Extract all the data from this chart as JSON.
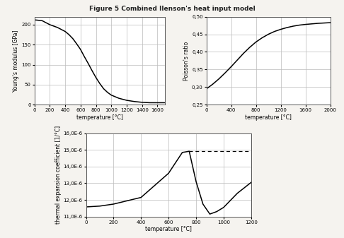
{
  "title": "Figure 5 Combined Ilenson's heat input model",
  "plot1": {
    "xlabel": "temperature [°C]",
    "ylabel": "Young's modulus [GPa]",
    "xlim": [
      0,
      1700
    ],
    "ylim": [
      0,
      220
    ],
    "xticks": [
      0,
      200,
      400,
      600,
      800,
      1000,
      1200,
      1400,
      1600
    ],
    "yticks": [
      0,
      50,
      100,
      150,
      200
    ],
    "x": [
      0,
      100,
      200,
      300,
      400,
      450,
      500,
      550,
      600,
      650,
      700,
      750,
      800,
      850,
      900,
      950,
      1000,
      1100,
      1200,
      1300,
      1400,
      1500,
      1600,
      1700
    ],
    "y": [
      212,
      210,
      200,
      193,
      183,
      175,
      165,
      152,
      138,
      120,
      103,
      85,
      68,
      53,
      40,
      31,
      24,
      16,
      11,
      8,
      6,
      5,
      5,
      5
    ]
  },
  "plot2": {
    "xlabel": "temperature [°C]",
    "ylabel": "Poisson's ratio",
    "xlim": [
      0,
      2000
    ],
    "ylim": [
      0.25,
      0.5
    ],
    "xticks": [
      0,
      400,
      800,
      1200,
      1600,
      2000
    ],
    "yticks": [
      0.25,
      0.3,
      0.35,
      0.4,
      0.45,
      0.5
    ],
    "ytick_labels": [
      "0,25",
      "0,30",
      "0,35",
      "0,40",
      "0,45",
      "0,50"
    ],
    "x": [
      0,
      100,
      200,
      300,
      400,
      500,
      600,
      700,
      800,
      900,
      1000,
      1100,
      1200,
      1300,
      1400,
      1500,
      1600,
      1800,
      2000
    ],
    "y": [
      0.295,
      0.308,
      0.323,
      0.34,
      0.358,
      0.377,
      0.396,
      0.413,
      0.428,
      0.44,
      0.45,
      0.458,
      0.464,
      0.469,
      0.473,
      0.476,
      0.478,
      0.481,
      0.483
    ]
  },
  "plot3": {
    "xlabel": "temperature [°C]",
    "ylabel": "thermal expansion coefficient [1/°C]",
    "xlim": [
      0,
      1200
    ],
    "ylim": [
      1.1e-05,
      1.6e-05
    ],
    "xticks": [
      0,
      200,
      400,
      600,
      800,
      1000,
      1200
    ],
    "yticks": [
      1.1e-05,
      1.2e-05,
      1.3e-05,
      1.4e-05,
      1.5e-05,
      1.6e-05
    ],
    "ytick_labels": [
      "11,0E-6",
      "12,0E-6",
      "13,0E-6",
      "14,0E-6",
      "15,0E-6",
      "16,0E-6"
    ],
    "x": [
      0,
      100,
      200,
      400,
      600,
      700,
      750,
      800,
      850,
      900,
      950,
      1000,
      1100,
      1200
    ],
    "y": [
      1.158e-05,
      1.163e-05,
      1.175e-05,
      1.215e-05,
      1.36e-05,
      1.485e-05,
      1.492e-05,
      1.31e-05,
      1.175e-05,
      1.115e-05,
      1.13e-05,
      1.155e-05,
      1.24e-05,
      1.305e-05
    ],
    "dashed_x": [
      750,
      800,
      900,
      1000,
      1100,
      1200
    ],
    "dashed_y": [
      1.492e-05,
      1.492e-05,
      1.492e-05,
      1.492e-05,
      1.492e-05,
      1.492e-05
    ]
  },
  "bg_color": "#f5f3ef",
  "plot_bg": "#ffffff",
  "grid_color": "#bbbbbb",
  "line_color": "#000000",
  "title_fontsize": 6.5,
  "label_fontsize": 5.5,
  "tick_fontsize": 5.0
}
